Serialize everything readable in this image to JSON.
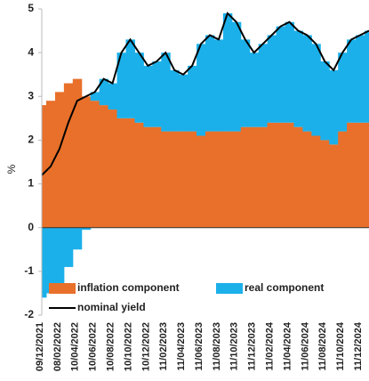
{
  "chart_data": {
    "type": "area",
    "y_label": "%",
    "categories": [
      "09/12/2021",
      null,
      "08/02/2022",
      null,
      "10/04/2022",
      null,
      "10/06/2022",
      null,
      "10/08/2022",
      null,
      "10/10/2022",
      null,
      "10/12/2022",
      null,
      "11/02/2023",
      null,
      "11/04/2023",
      null,
      "11/06/2023",
      null,
      "11/08/2023",
      null,
      "11/10/2023",
      null,
      "11/12/2023",
      null,
      "11/02/2024",
      null,
      "11/04/2024",
      null,
      "11/06/2024",
      null,
      "11/08/2024",
      null,
      "11/10/2024",
      null,
      "11/12/2024",
      null
    ],
    "series": [
      {
        "name": "inflation component",
        "color": "#e8702a",
        "kind": "stack",
        "values": [
          2.8,
          2.9,
          3.1,
          3.3,
          3.4,
          3.0,
          2.9,
          2.8,
          2.7,
          2.5,
          2.5,
          2.4,
          2.3,
          2.3,
          2.2,
          2.2,
          2.2,
          2.2,
          2.1,
          2.2,
          2.2,
          2.2,
          2.2,
          2.3,
          2.3,
          2.3,
          2.4,
          2.4,
          2.4,
          2.3,
          2.2,
          2.1,
          2.0,
          1.9,
          2.2,
          2.4,
          2.4,
          2.4
        ]
      },
      {
        "name": "real component",
        "color": "#1cb0ea",
        "kind": "stack",
        "values": [
          -1.6,
          -1.5,
          -1.3,
          -0.9,
          -0.5,
          -0.05,
          0.2,
          0.6,
          0.6,
          1.5,
          1.8,
          1.6,
          1.4,
          1.5,
          1.8,
          1.4,
          1.3,
          1.5,
          2.1,
          2.2,
          2.1,
          2.7,
          2.5,
          2.0,
          1.7,
          1.9,
          2.0,
          2.2,
          2.3,
          2.2,
          2.2,
          2.1,
          1.8,
          1.7,
          1.8,
          1.9,
          2.0,
          2.1
        ]
      },
      {
        "name": "nominal yield",
        "color": "#000000",
        "kind": "line",
        "values": [
          1.2,
          1.4,
          1.8,
          2.4,
          2.9,
          3.0,
          3.1,
          3.4,
          3.3,
          4.0,
          4.3,
          4.0,
          3.7,
          3.8,
          4.0,
          3.6,
          3.5,
          3.7,
          4.2,
          4.4,
          4.3,
          4.9,
          4.7,
          4.3,
          4.0,
          4.2,
          4.4,
          4.6,
          4.7,
          4.5,
          4.4,
          4.2,
          3.8,
          3.6,
          4.0,
          4.3,
          4.4,
          4.5
        ]
      }
    ],
    "ylim": [
      -2,
      5
    ],
    "yticks": [
      -2,
      -1,
      0,
      1,
      2,
      3,
      4,
      5
    ],
    "grid": false
  }
}
